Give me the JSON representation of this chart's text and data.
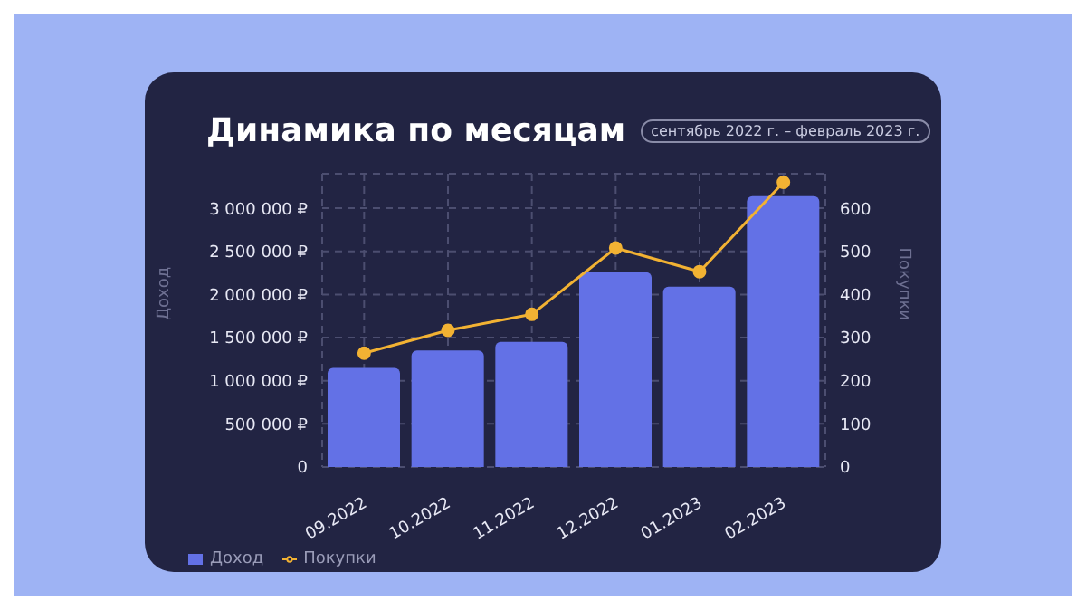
{
  "chart_data": {
    "type": "bar",
    "title": "Динамика по месяцам",
    "subtitle": "сентябрь 2022 г. – февраль 2023 г.",
    "ylabel": "Доход",
    "y2label": "Покупки",
    "categories": [
      "09.2022",
      "10.2022",
      "11.2022",
      "12.2022",
      "01.2023",
      "02.2023"
    ],
    "series": [
      {
        "name": "Доход",
        "color": "#6371e6",
        "values": [
          1150000,
          1350000,
          1450000,
          2260000,
          2090000,
          3140000
        ]
      },
      {
        "name": "Покупки",
        "type": "line",
        "axis": "y2",
        "color": "#f2b233",
        "values": [
          264,
          317,
          354,
          508,
          453,
          660
        ]
      }
    ],
    "ylim": [
      0,
      3400000
    ],
    "yticks": [
      {
        "value": 0,
        "label": "0"
      },
      {
        "value": 500000,
        "label": "500 000 ₽"
      },
      {
        "value": 1000000,
        "label": "1 000 000 ₽"
      },
      {
        "value": 1500000,
        "label": "1 500 000 ₽"
      },
      {
        "value": 2000000,
        "label": "2 000 000 ₽"
      },
      {
        "value": 2500000,
        "label": "2 500 000 ₽"
      },
      {
        "value": 3000000,
        "label": "3 000 000 ₽"
      }
    ],
    "y2lim": [
      0,
      680
    ],
    "y2ticks": [
      0,
      100,
      200,
      300,
      400,
      500,
      600
    ],
    "grid": true,
    "legend": "bottom left",
    "marker": "circle",
    "line_style": "solid"
  }
}
